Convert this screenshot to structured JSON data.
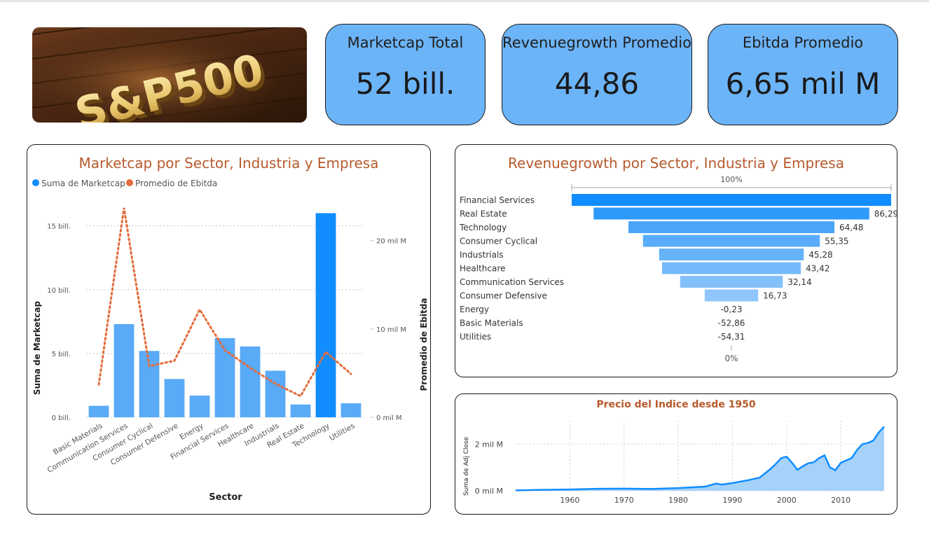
{
  "logo": {
    "text": "S&P500"
  },
  "kpis": [
    {
      "label": "Marketcap Total",
      "value": "52 bill."
    },
    {
      "label": "Revenuegrowth Promedio",
      "value": "44,86"
    },
    {
      "label": "Ebitda Promedio",
      "value": "6,65 mil M"
    }
  ],
  "colors": {
    "bar": "#59aaf7",
    "bar_highlight": "#118dff",
    "line": "#e46c3b",
    "kpi_bg": "#6cb4f8",
    "title": "#b65a2c",
    "area": "#a6d2fa"
  },
  "charts": {
    "combo": {
      "title": "Marketcap por Sector, Industria y Empresa",
      "legend": [
        "Suma de Marketcap",
        "Promedio de Ebitda"
      ],
      "xlabel": "Sector",
      "ylabel_left": "Suma de Marketcap",
      "ylabel_right": "Promedio de Ebitda",
      "left_ticks": [
        "0 bill.",
        "5 bill.",
        "10 bill.",
        "15 bill."
      ],
      "right_ticks": [
        "0 mil M",
        "10 mil M",
        "20 mil M"
      ]
    },
    "funnel": {
      "title": "Revenuegrowth por Sector, Industria y Empresa",
      "top_label": "100%",
      "bottom_label": "0%"
    },
    "area": {
      "title": "Precio del Indice desde 1950",
      "ylabel": "Suma de Adj Close",
      "y_ticks": [
        "0 mil M",
        "2 mil M"
      ],
      "x_ticks": [
        "1960",
        "1970",
        "1980",
        "1990",
        "2000",
        "2010"
      ]
    }
  },
  "chart_data": [
    {
      "type": "bar",
      "title": "Marketcap por Sector, Industria y Empresa",
      "xlabel": "Sector",
      "categories": [
        "Basic Materials",
        "Communication Services",
        "Consumer Cyclical",
        "Consumer Defensive",
        "Energy",
        "Financial Services",
        "Healthcare",
        "Industrials",
        "Real Estate",
        "Technology",
        "Utilities"
      ],
      "series": [
        {
          "name": "Suma de Marketcap",
          "axis": "left",
          "type": "bar",
          "values": [
            0.9,
            7.3,
            5.2,
            3.0,
            1.7,
            6.2,
            5.55,
            3.65,
            1.0,
            16.0,
            1.1
          ]
        },
        {
          "name": "Promedio de Ebitda",
          "axis": "right",
          "type": "line",
          "values": [
            3.7,
            23.7,
            5.8,
            6.4,
            12.2,
            7.6,
            5.6,
            3.8,
            2.4,
            7.4,
            4.9
          ]
        }
      ],
      "ylim_left": [
        0,
        18
      ],
      "ylim_right": [
        0,
        26
      ],
      "legend_position": "top-left",
      "grid": true
    },
    {
      "type": "bar",
      "orientation": "horizontal-funnel",
      "title": "Revenuegrowth por Sector, Industria y Empresa",
      "categories": [
        "Financial Services",
        "Real Estate",
        "Technology",
        "Consumer Cyclical",
        "Industrials",
        "Healthcare",
        "Communication Services",
        "Consumer Defensive",
        "Energy",
        "Basic Materials",
        "Utilities"
      ],
      "values": [
        100.0,
        86.29,
        64.48,
        55.35,
        45.28,
        43.42,
        32.14,
        16.73,
        -0.23,
        -52.86,
        -54.31
      ],
      "labels": [
        "",
        "86,29",
        "64,48",
        "55,35",
        "45,28",
        "43,42",
        "32,14",
        "16,73",
        "-0,23",
        "-52,86",
        "-54,31"
      ]
    },
    {
      "type": "area",
      "title": "Precio del Indice desde 1950",
      "ylabel": "Suma de Adj Close",
      "x": [
        1950,
        1955,
        1960,
        1965,
        1970,
        1975,
        1980,
        1985,
        1987,
        1988,
        1990,
        1993,
        1995,
        1997,
        1998,
        1999,
        2000,
        2001,
        2002,
        2003,
        2004,
        2005,
        2006,
        2007,
        2008,
        2009,
        2010,
        2011,
        2012,
        2013,
        2014,
        2015,
        2016,
        2017,
        2018
      ],
      "y": [
        17,
        40,
        58,
        88,
        92,
        80,
        115,
        180,
        310,
        265,
        330,
        460,
        560,
        930,
        1150,
        1400,
        1460,
        1200,
        900,
        1050,
        1180,
        1220,
        1400,
        1520,
        1000,
        880,
        1200,
        1300,
        1400,
        1750,
        2000,
        2050,
        2150,
        2500,
        2750
      ],
      "ylim": [
        0,
        3000
      ],
      "xlim": [
        1950,
        2018
      ]
    }
  ]
}
